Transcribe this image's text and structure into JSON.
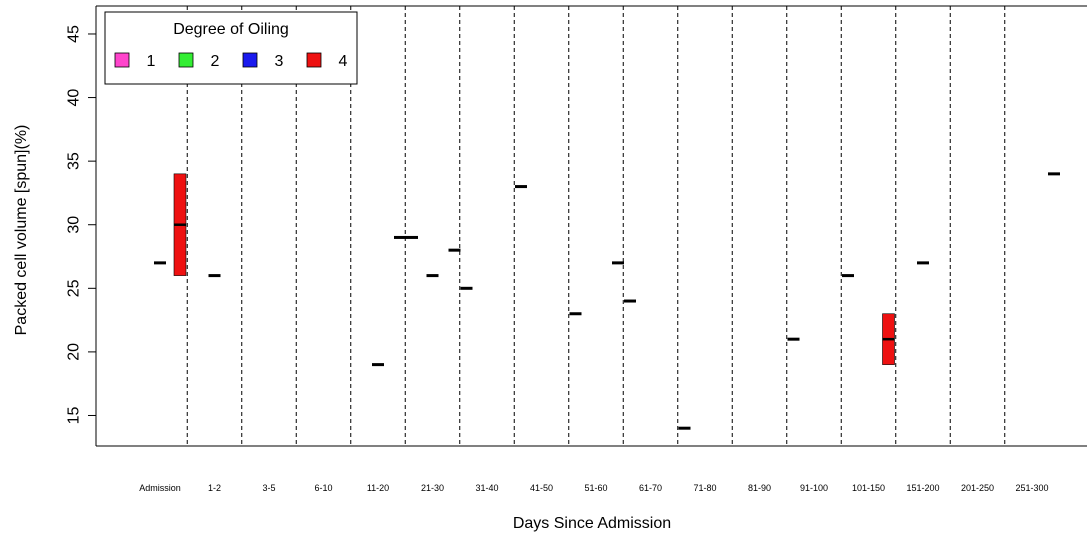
{
  "chart_data": {
    "type": "boxplot",
    "title": "",
    "xlabel": "Days Since Admission",
    "ylabel": "Packed cell volume [spun](%)",
    "ylim": [
      12.6,
      47.2
    ],
    "yticks": [
      15,
      20,
      25,
      30,
      35,
      40,
      45
    ],
    "categories": [
      "Admission",
      "1-2",
      "3-5",
      "6-10",
      "11-20",
      "21-30",
      "31-40",
      "41-50",
      "51-60",
      "61-70",
      "71-80",
      "81-90",
      "91-100",
      "101-150",
      "151-200",
      "201-250",
      "251-300"
    ],
    "legend": {
      "title": "Degree of Oiling",
      "position": "top-left",
      "entries": [
        {
          "label": "1",
          "color": "#ff44cc"
        },
        {
          "label": "2",
          "color": "#33ee33"
        },
        {
          "label": "3",
          "color": "#1a1aee"
        },
        {
          "label": "4",
          "color": "#ee1111"
        }
      ]
    },
    "grid": false,
    "points": [
      {
        "category": "Admission",
        "group": "1",
        "value": 27
      },
      {
        "category": "1-2",
        "group": "1",
        "value": 26
      },
      {
        "category": "11-20",
        "group": "1",
        "value": 19
      },
      {
        "category": "11-20",
        "group": "2",
        "value": 29
      },
      {
        "category": "11-20",
        "group": "3",
        "value": 29
      },
      {
        "category": "21-30",
        "group": "1",
        "value": 26
      },
      {
        "category": "21-30",
        "group": "2",
        "value": 28
      },
      {
        "category": "21-30",
        "group": "3",
        "value": 25
      },
      {
        "category": "31-40",
        "group": "3",
        "value": 33
      },
      {
        "category": "41-50",
        "group": "3",
        "value": 23
      },
      {
        "category": "51-60",
        "group": "2",
        "value": 27
      },
      {
        "category": "51-60",
        "group": "3",
        "value": 24
      },
      {
        "category": "61-70",
        "group": "3",
        "value": 14
      },
      {
        "category": "81-90",
        "group": "3",
        "value": 21
      },
      {
        "category": "91-100",
        "group": "3",
        "value": 26
      },
      {
        "category": "151-200",
        "group": "1",
        "value": 27
      },
      {
        "category": "251-300",
        "group": "2",
        "value": 34
      }
    ],
    "boxes": [
      {
        "category": "Admission",
        "group": "4",
        "min": 26,
        "median": 30,
        "max": 34,
        "color": "#ee1111"
      },
      {
        "category": "101-150",
        "group": "4",
        "min": 19,
        "median": 21,
        "max": 23,
        "color": "#ee1111"
      }
    ]
  }
}
